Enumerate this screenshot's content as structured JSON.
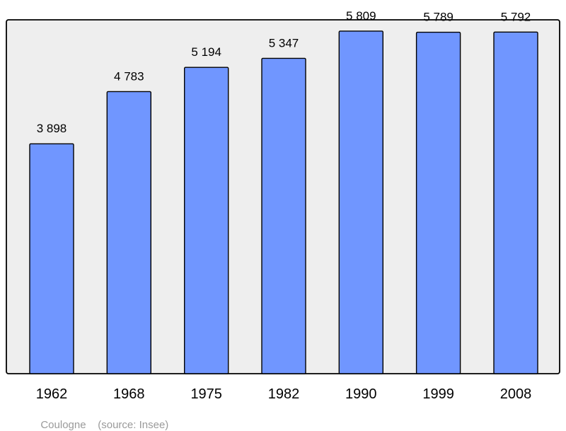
{
  "chart_data": {
    "type": "bar",
    "categories": [
      "1962",
      "1968",
      "1975",
      "1982",
      "1990",
      "1999",
      "2008"
    ],
    "values": [
      3898,
      4783,
      5194,
      5347,
      5809,
      5789,
      5792
    ],
    "value_labels": [
      "3 898",
      "4 783",
      "5 194",
      "5 347",
      "5 809",
      "5 789",
      "5 792"
    ],
    "ylim": [
      0,
      6000
    ],
    "grid": false,
    "colors": {
      "bar": "#7096ff",
      "bar_stroke": "#000000",
      "plot_bg": "#eeeeee",
      "frame": "#000000"
    }
  },
  "caption": {
    "place": "Coulogne",
    "source": "(source: Insee)"
  }
}
